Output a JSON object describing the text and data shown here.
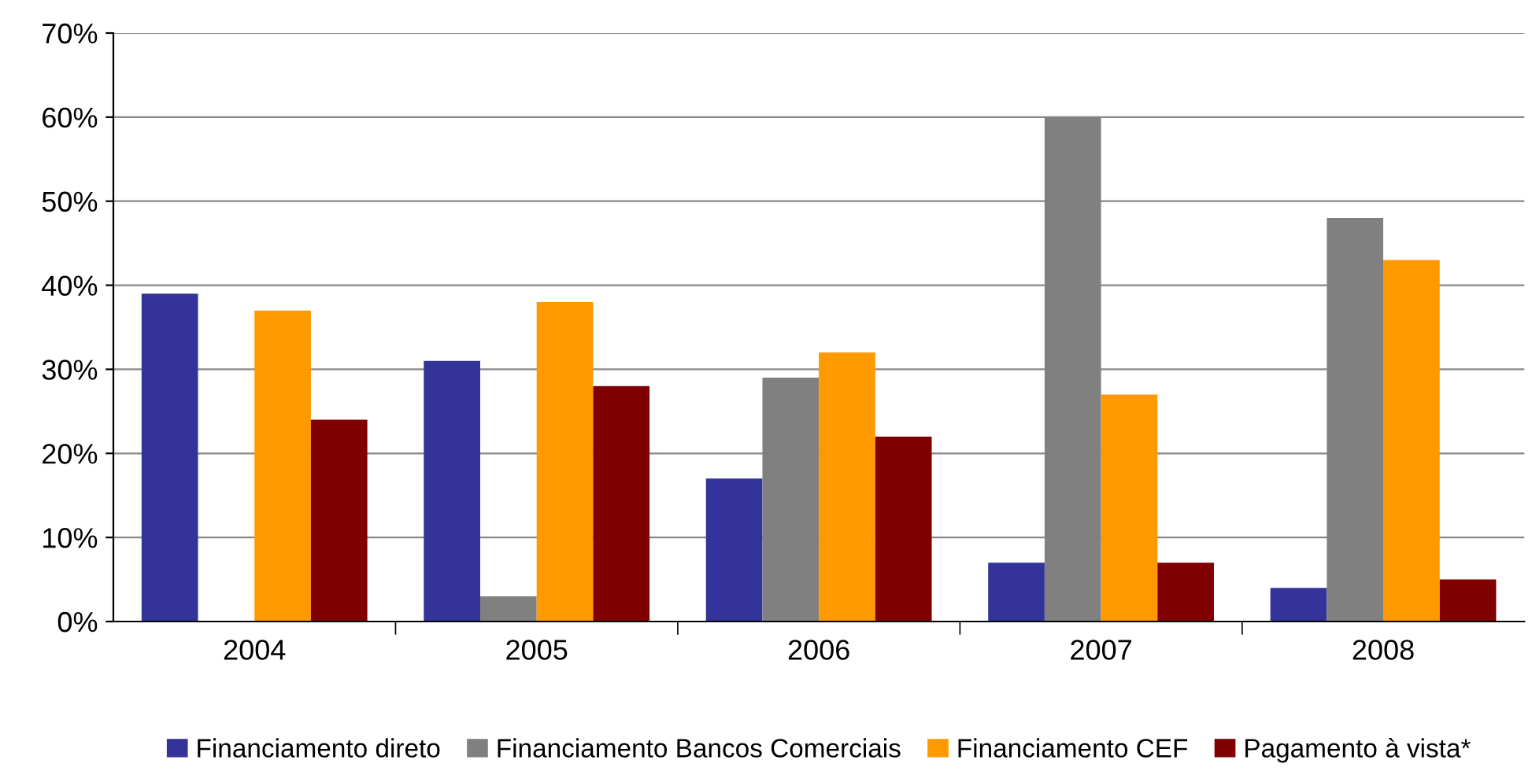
{
  "chart_data": {
    "type": "bar",
    "categories": [
      "2004",
      "2005",
      "2006",
      "2007",
      "2008"
    ],
    "series": [
      {
        "name": "Financiamento direto",
        "color": "#333399",
        "values": [
          39,
          31,
          17,
          7,
          4
        ]
      },
      {
        "name": "Financiamento Bancos Comerciais",
        "color": "#808080",
        "values": [
          0,
          3,
          29,
          60,
          48
        ]
      },
      {
        "name": "Financiamento CEF",
        "color": "#ff9900",
        "values": [
          37,
          38,
          32,
          27,
          43
        ]
      },
      {
        "name": "Pagamento à vista*",
        "color": "#800000",
        "values": [
          24,
          28,
          22,
          7,
          5
        ]
      }
    ],
    "ylim": [
      0,
      70
    ],
    "yticks": [
      {
        "value": 0,
        "label": "0%"
      },
      {
        "value": 10,
        "label": "10%"
      },
      {
        "value": 20,
        "label": "20%"
      },
      {
        "value": 30,
        "label": "30%"
      },
      {
        "value": 40,
        "label": "40%"
      },
      {
        "value": 50,
        "label": "50%"
      },
      {
        "value": 60,
        "label": "60%"
      },
      {
        "value": 70,
        "label": "70%"
      }
    ],
    "grid": "y",
    "legend": "bottom"
  }
}
